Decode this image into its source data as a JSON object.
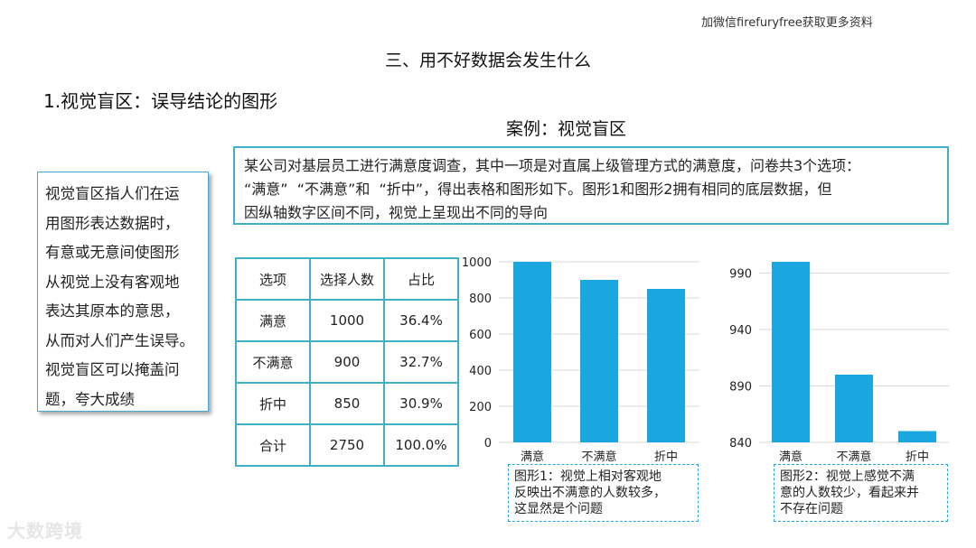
{
  "watermark_top": "加微信firefuryfree获取更多资料",
  "section_title": "三、用不好数据会发生什么",
  "subtitle": "1.视觉盲区：误导结论的图形",
  "case_title": "案例：视觉盲区",
  "definition_lines": [
    "视觉盲区指人们在运",
    "用图形表达数据时，",
    "有意或无意间使图形",
    "从视觉上没有客观地",
    "表达其原本的意思，",
    "从而对人们产生误导。",
    "视觉盲区可以掩盖问",
    "题，夸大成绩"
  ],
  "case_lines": [
    "某公司对基层员工进行满意度调查，其中一项是对直属上级管理方式的满意度，问卷共3个选项：",
    "“满意”  “不满意”和  “折中”，得出表格和图形如下。图形1和图形2拥有相同的底层数据，但",
    "因纵轴数字区间不同，视觉上呈现出不同的导向"
  ],
  "table": {
    "headers": [
      "选项",
      "选择人数",
      "占比"
    ],
    "rows": [
      [
        "满意",
        "1000",
        "36.4%"
      ],
      [
        "不满意",
        "900",
        "32.7%"
      ],
      [
        "折中",
        "850",
        "30.9%"
      ],
      [
        "合计",
        "2750",
        "100.0%"
      ]
    ]
  },
  "chart_data": [
    {
      "type": "bar",
      "categories": [
        "满意",
        "不满意",
        "折中"
      ],
      "values": [
        1000,
        900,
        850
      ],
      "ylim": [
        0,
        1000
      ],
      "yticks": [
        0,
        200,
        400,
        600,
        800,
        1000
      ],
      "grid": true,
      "bar_color": "#1aa7e0",
      "grid_color": "#d9d9d9"
    },
    {
      "type": "bar",
      "categories": [
        "满意",
        "不满意",
        "折中"
      ],
      "values": [
        1000,
        900,
        850
      ],
      "ylim": [
        840,
        1000
      ],
      "yticks": [
        840,
        890,
        940,
        990
      ],
      "grid": true,
      "bar_color": "#1aa7e0",
      "grid_color": "#d9d9d9"
    }
  ],
  "captions": [
    [
      "图形1：视觉上相对客观地",
      "反映出不满意的人数较多，",
      "这显然是个问题"
    ],
    [
      "图形2：视觉上感觉不满",
      "意的人数较少，看起来并",
      "不存在问题"
    ]
  ],
  "brand_logo": "大数跨境"
}
